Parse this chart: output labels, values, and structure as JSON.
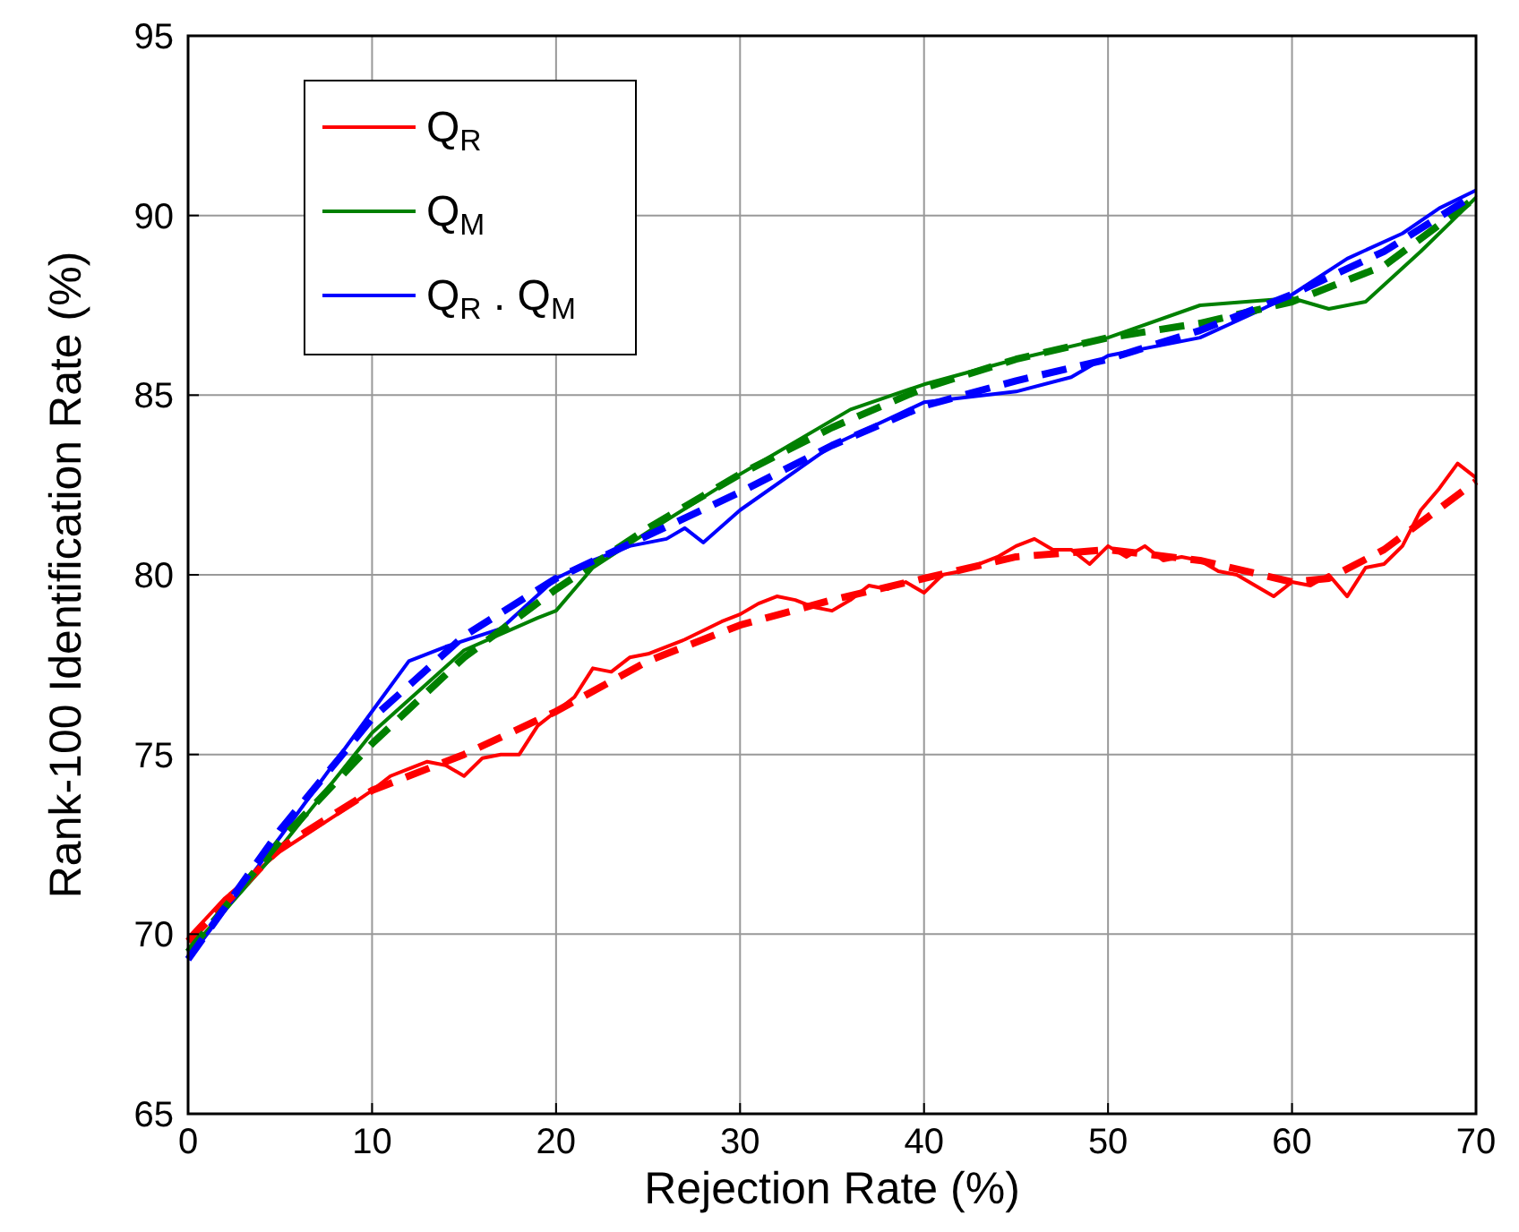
{
  "chart_data": {
    "type": "line",
    "xlabel": "Rejection Rate (%)",
    "ylabel": "Rank-100 Identification Rate (%)",
    "xlim": [
      0,
      70
    ],
    "ylim": [
      65,
      95
    ],
    "xticks": [
      0,
      10,
      20,
      30,
      40,
      50,
      60,
      70
    ],
    "yticks": [
      65,
      70,
      75,
      80,
      85,
      90,
      95
    ],
    "grid": true,
    "legend": "top left",
    "series": [
      {
        "name": "Q$_{R}$",
        "color": "#ff0000",
        "line_style": "solid",
        "x": [
          0,
          2,
          5,
          8,
          10,
          11,
          12,
          13,
          14,
          15,
          16,
          17,
          18,
          19,
          20,
          21,
          22,
          23,
          24,
          25,
          27,
          29,
          30,
          31,
          32,
          33,
          34,
          35,
          36,
          37,
          38,
          39,
          40,
          41,
          42,
          43,
          44,
          45,
          46,
          47,
          48,
          49,
          50,
          51,
          52,
          53,
          54,
          55,
          56,
          57,
          58,
          59,
          60,
          61,
          62,
          63,
          64,
          65,
          66,
          67,
          68,
          69,
          70
        ],
        "values": [
          69.9,
          71,
          72.3,
          73.3,
          74,
          74.4,
          74.6,
          74.8,
          74.7,
          74.4,
          74.9,
          75,
          75,
          75.8,
          76.2,
          76.6,
          77.4,
          77.3,
          77.7,
          77.8,
          78.2,
          78.7,
          78.9,
          79.2,
          79.4,
          79.3,
          79.1,
          79,
          79.3,
          79.7,
          79.6,
          79.8,
          79.5,
          80,
          80.1,
          80.3,
          80.5,
          80.8,
          81,
          80.7,
          80.7,
          80.3,
          80.8,
          80.5,
          80.8,
          80.4,
          80.5,
          80.4,
          80.1,
          80,
          79.7,
          79.4,
          79.8,
          79.7,
          80,
          79.4,
          80.2,
          80.3,
          80.8,
          81.8,
          82.4,
          83.1,
          82.7
        ]
      },
      {
        "name": "Q$_{M}$",
        "color": "#008000",
        "line_style": "solid",
        "x": [
          0,
          5,
          10,
          15,
          19,
          20,
          22,
          25,
          30,
          36,
          40,
          45,
          50,
          55,
          60,
          62,
          64,
          67,
          70
        ],
        "values": [
          69.5,
          72.4,
          75.6,
          77.9,
          78.8,
          79,
          80.2,
          81.2,
          82.8,
          84.6,
          85.3,
          86,
          86.6,
          87.5,
          87.7,
          87.4,
          87.6,
          89,
          90.5
        ]
      },
      {
        "name": "Q$_{R}$ . Q$_{M}$",
        "color": "#0000ff",
        "line_style": "solid",
        "x": [
          0,
          5,
          10,
          12,
          14,
          17,
          20,
          22,
          24,
          26,
          27,
          28,
          30,
          35,
          40,
          45,
          48,
          50,
          55,
          58,
          60,
          63,
          66,
          68,
          70
        ],
        "values": [
          69.3,
          72.7,
          76.2,
          77.6,
          78,
          78.5,
          79.9,
          80.4,
          80.8,
          81,
          81.3,
          80.9,
          81.8,
          83.6,
          84.8,
          85.1,
          85.5,
          86.1,
          86.6,
          87.3,
          87.8,
          88.8,
          89.5,
          90.2,
          90.7
        ]
      },
      {
        "color": "#ff0000",
        "line_style": "dashed",
        "x": [
          0,
          5,
          10,
          15,
          20,
          25,
          30,
          35,
          40,
          45,
          50,
          55,
          60,
          62,
          65,
          70
        ],
        "values": [
          69.8,
          72.4,
          74,
          75,
          76.2,
          77.6,
          78.6,
          79.3,
          79.9,
          80.5,
          80.7,
          80.4,
          79.8,
          79.9,
          80.7,
          82.6
        ]
      },
      {
        "color": "#008000",
        "line_style": "dashed",
        "x": [
          0,
          5,
          10,
          15,
          20,
          25,
          30,
          35,
          40,
          45,
          50,
          55,
          60,
          65,
          70
        ],
        "values": [
          69.5,
          72.6,
          75.3,
          77.7,
          79.6,
          81.3,
          82.8,
          84.1,
          85.2,
          86,
          86.6,
          87,
          87.6,
          88.6,
          90.5
        ]
      },
      {
        "color": "#0000ff",
        "line_style": "dashed",
        "x": [
          0,
          5,
          10,
          15,
          20,
          25,
          30,
          35,
          40,
          45,
          50,
          55,
          60,
          65,
          70
        ],
        "values": [
          69.3,
          72.9,
          76,
          78.3,
          79.9,
          81.1,
          82.3,
          83.6,
          84.7,
          85.4,
          86,
          86.8,
          87.8,
          89,
          90.6
        ]
      }
    ]
  }
}
